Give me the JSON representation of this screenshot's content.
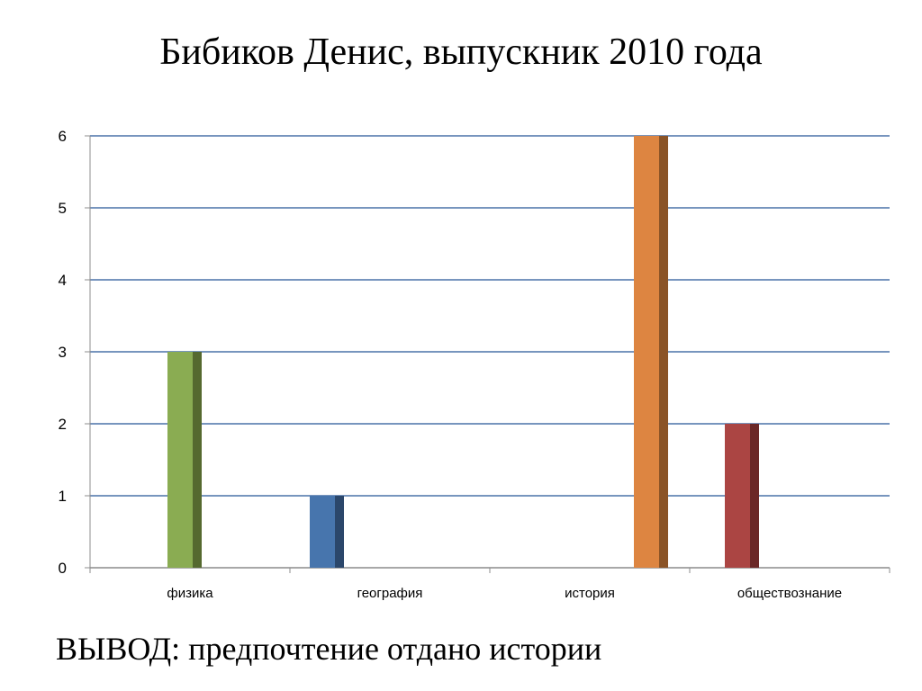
{
  "title": "Бибиков Денис, выпускник 2010 года",
  "conclusion": "ВЫВОД: предпочтение отдано истории",
  "colors": {
    "grid": "#4a72a8",
    "axis": "#8c8c8c",
    "bars": [
      "#8aac52",
      "#4775ad",
      "#dd8541",
      "#ab4543"
    ],
    "bar_sides": [
      "#55692f",
      "#2b476b",
      "#8a5326",
      "#6b2827"
    ]
  },
  "chart_data": {
    "type": "bar",
    "title": "",
    "xlabel": "",
    "ylabel": "",
    "categories": [
      "физика",
      "география",
      "история",
      "обществознание"
    ],
    "series": [
      {
        "values": [
          3,
          1,
          6,
          2
        ]
      }
    ],
    "ylim": [
      0,
      6
    ],
    "yticks": [
      0,
      1,
      2,
      3,
      4,
      5,
      6
    ],
    "grid": true,
    "legend": "none"
  }
}
